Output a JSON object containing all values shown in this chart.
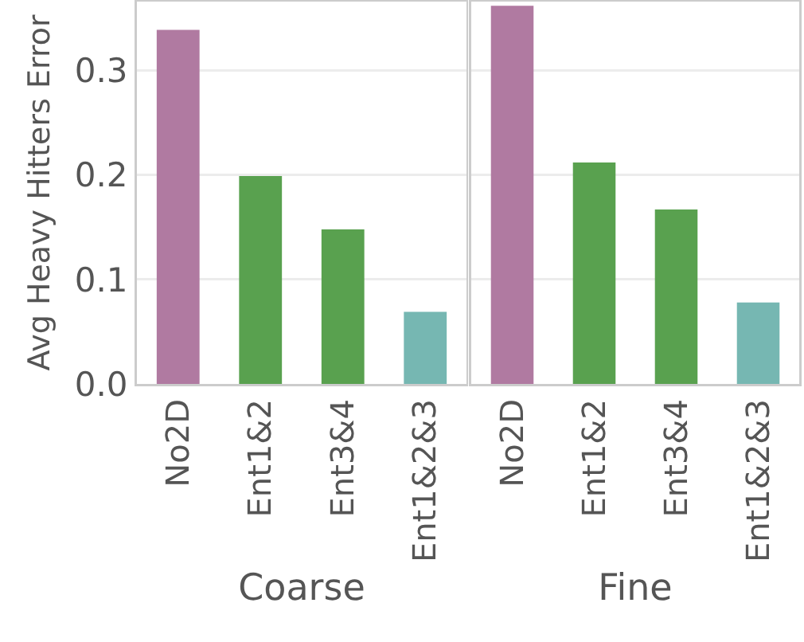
{
  "chart_data": [
    {
      "type": "bar",
      "xlabel": "Coarse",
      "ylabel": "Avg Heavy Hitters Error",
      "categories": [
        "No2D",
        "Ent1&2",
        "Ent3&4",
        "Ent1&2&3"
      ],
      "values": [
        0.339,
        0.199,
        0.148,
        0.069
      ],
      "colors": [
        "#b07aa1",
        "#59a14f",
        "#59a14f",
        "#76b7b2"
      ],
      "ylim": [
        0,
        0.366
      ],
      "yticks": [
        {
          "value": 0,
          "label": "0.0"
        },
        0.1,
        0.2,
        0.3
      ],
      "grid": "y"
    },
    {
      "type": "bar",
      "xlabel": "Fine",
      "categories": [
        "No2D",
        "Ent1&2",
        "Ent3&4",
        "Ent1&2&3"
      ],
      "values": [
        0.362,
        0.212,
        0.167,
        0.078
      ],
      "colors": [
        "#b07aa1",
        "#59a14f",
        "#59a14f",
        "#76b7b2"
      ],
      "ylim": [
        0,
        0.366
      ],
      "yticks": [
        0,
        0.1,
        0.2,
        0.3
      ],
      "grid": "y",
      "tick_labels": "x"
    }
  ]
}
